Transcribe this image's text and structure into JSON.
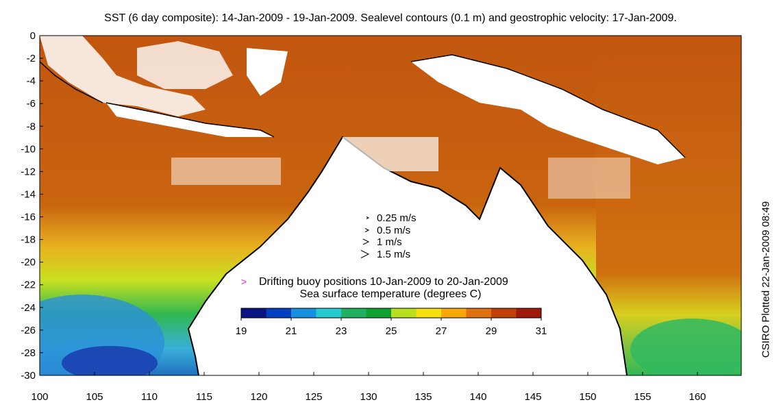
{
  "title": "SST (6 day composite): 14-Jan-2009 - 19-Jan-2009. Sealevel contours (0.1 m) and geostrophic velocity: 17-Jan-2009.",
  "side_note": "CSIRO Plotted 22-Jan-2009 08:49",
  "axes": {
    "x_ticks": [
      "100",
      "105",
      "110",
      "115",
      "120",
      "125",
      "130",
      "135",
      "140",
      "145",
      "150",
      "155",
      "160"
    ],
    "y_ticks": [
      "0",
      "-2",
      "-4",
      "-6",
      "-8",
      "-10",
      "-12",
      "-14",
      "-16",
      "-18",
      "-20",
      "-22",
      "-24",
      "-26",
      "-28",
      "-30"
    ]
  },
  "velocity_legend": [
    {
      "label": "0.25 m/s"
    },
    {
      "label": "0.5 m/s"
    },
    {
      "label": "1 m/s"
    },
    {
      "label": "1.5 m/s"
    }
  ],
  "buoy_legend": {
    "symbol": ">",
    "label": "Drifting buoy positions 10-Jan-2009 to 20-Jan-2009",
    "color": "#e020e0"
  },
  "colorbar": {
    "title": "Sea surface temperature (degrees C)",
    "ticks": [
      "19",
      "21",
      "23",
      "25",
      "27",
      "29",
      "31"
    ],
    "colors": [
      "#0a1480",
      "#0040c0",
      "#1890e0",
      "#28c8d0",
      "#20b060",
      "#10a030",
      "#b8e020",
      "#f8e010",
      "#f8a808",
      "#e07010",
      "#c04008",
      "#a01808"
    ]
  }
}
